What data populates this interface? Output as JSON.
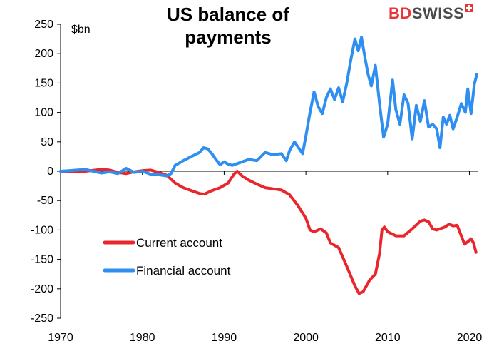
{
  "title": "US balance of\npayments",
  "title_line1": "US balance of",
  "title_line2": "payments",
  "unit_label": "$bn",
  "logo": {
    "part1": "BD",
    "part2": "SWISS"
  },
  "colors": {
    "current_account": "#e8262c",
    "financial_account": "#2f8ff0",
    "axis": "#000000"
  },
  "chart_data": {
    "type": "line",
    "title": "US balance of payments",
    "ylabel": "$bn",
    "xlabel": "",
    "xlim": [
      1970,
      2021
    ],
    "ylim": [
      -250,
      250
    ],
    "x_ticks": [
      1970,
      1980,
      1990,
      2000,
      2010,
      2020
    ],
    "y_ticks": [
      250,
      200,
      150,
      100,
      50,
      0,
      -50,
      -100,
      -150,
      -200,
      -250
    ],
    "grid": false,
    "legend_position": "lower-left",
    "series": [
      {
        "name": "Current account",
        "color": "#e8262c",
        "points": [
          [
            1970,
            0
          ],
          [
            1972,
            -1
          ],
          [
            1973,
            0
          ],
          [
            1975,
            3
          ],
          [
            1976,
            2
          ],
          [
            1977,
            -2
          ],
          [
            1978,
            -4
          ],
          [
            1979,
            -1
          ],
          [
            1980,
            1
          ],
          [
            1981,
            2
          ],
          [
            1982,
            -2
          ],
          [
            1983,
            -7
          ],
          [
            1984,
            -20
          ],
          [
            1985,
            -28
          ],
          [
            1986,
            -33
          ],
          [
            1987,
            -38
          ],
          [
            1987.6,
            -39
          ],
          [
            1988.5,
            -33
          ],
          [
            1989.5,
            -28
          ],
          [
            1990.5,
            -20
          ],
          [
            1991.2,
            -5
          ],
          [
            1991.6,
            0
          ],
          [
            1992.2,
            -8
          ],
          [
            1993,
            -15
          ],
          [
            1994,
            -22
          ],
          [
            1995,
            -28
          ],
          [
            1996,
            -30
          ],
          [
            1997,
            -32
          ],
          [
            1998,
            -40
          ],
          [
            1999,
            -58
          ],
          [
            2000,
            -80
          ],
          [
            2000.5,
            -100
          ],
          [
            2001,
            -103
          ],
          [
            2001.8,
            -98
          ],
          [
            2002.5,
            -105
          ],
          [
            2003,
            -122
          ],
          [
            2004,
            -130
          ],
          [
            2005,
            -162
          ],
          [
            2006,
            -195
          ],
          [
            2006.5,
            -208
          ],
          [
            2007,
            -205
          ],
          [
            2007.8,
            -185
          ],
          [
            2008.5,
            -175
          ],
          [
            2009,
            -140
          ],
          [
            2009.3,
            -100
          ],
          [
            2009.6,
            -95
          ],
          [
            2010,
            -103
          ],
          [
            2011,
            -110
          ],
          [
            2012,
            -110
          ],
          [
            2013,
            -98
          ],
          [
            2014,
            -85
          ],
          [
            2014.5,
            -83
          ],
          [
            2015,
            -86
          ],
          [
            2015.5,
            -98
          ],
          [
            2016,
            -100
          ],
          [
            2017,
            -95
          ],
          [
            2017.5,
            -90
          ],
          [
            2018,
            -93
          ],
          [
            2018.5,
            -92
          ],
          [
            2019,
            -110
          ],
          [
            2019.4,
            -124
          ],
          [
            2019.8,
            -120
          ],
          [
            2020.2,
            -115
          ],
          [
            2020.5,
            -122
          ],
          [
            2020.8,
            -138
          ]
        ]
      },
      {
        "name": "Financial account",
        "color": "#2f8ff0",
        "points": [
          [
            1970,
            0
          ],
          [
            1971,
            1
          ],
          [
            1972,
            2
          ],
          [
            1973,
            3
          ],
          [
            1974,
            0
          ],
          [
            1975,
            -3
          ],
          [
            1976,
            -1
          ],
          [
            1977,
            -4
          ],
          [
            1978,
            5
          ],
          [
            1979,
            -2
          ],
          [
            1980,
            0
          ],
          [
            1981,
            -5
          ],
          [
            1982,
            -6
          ],
          [
            1983,
            -8
          ],
          [
            1983.5,
            -4
          ],
          [
            1984,
            10
          ],
          [
            1985,
            18
          ],
          [
            1986,
            25
          ],
          [
            1987,
            32
          ],
          [
            1987.5,
            40
          ],
          [
            1988,
            38
          ],
          [
            1988.5,
            30
          ],
          [
            1989,
            20
          ],
          [
            1989.5,
            11
          ],
          [
            1990,
            16
          ],
          [
            1990.5,
            12
          ],
          [
            1991,
            10
          ],
          [
            1992,
            15
          ],
          [
            1993,
            20
          ],
          [
            1994,
            18
          ],
          [
            1995,
            32
          ],
          [
            1996,
            28
          ],
          [
            1997,
            30
          ],
          [
            1997.6,
            18
          ],
          [
            1998,
            35
          ],
          [
            1998.6,
            50
          ],
          [
            1999,
            42
          ],
          [
            1999.6,
            30
          ],
          [
            2000,
            60
          ],
          [
            2000.5,
            100
          ],
          [
            2001,
            135
          ],
          [
            2001.5,
            110
          ],
          [
            2002,
            98
          ],
          [
            2002.5,
            125
          ],
          [
            2003,
            140
          ],
          [
            2003.5,
            122
          ],
          [
            2004,
            142
          ],
          [
            2004.5,
            118
          ],
          [
            2005,
            150
          ],
          [
            2005.5,
            190
          ],
          [
            2006,
            225
          ],
          [
            2006.4,
            205
          ],
          [
            2006.8,
            228
          ],
          [
            2007.2,
            195
          ],
          [
            2007.6,
            165
          ],
          [
            2008,
            145
          ],
          [
            2008.5,
            180
          ],
          [
            2009,
            115
          ],
          [
            2009.5,
            58
          ],
          [
            2010,
            80
          ],
          [
            2010.6,
            155
          ],
          [
            2011,
            105
          ],
          [
            2011.5,
            80
          ],
          [
            2012,
            130
          ],
          [
            2012.5,
            115
          ],
          [
            2013,
            55
          ],
          [
            2013.5,
            112
          ],
          [
            2014,
            85
          ],
          [
            2014.5,
            120
          ],
          [
            2015,
            75
          ],
          [
            2015.5,
            80
          ],
          [
            2016,
            72
          ],
          [
            2016.4,
            40
          ],
          [
            2016.8,
            92
          ],
          [
            2017.2,
            80
          ],
          [
            2017.6,
            95
          ],
          [
            2018,
            72
          ],
          [
            2018.5,
            92
          ],
          [
            2019,
            115
          ],
          [
            2019.5,
            100
          ],
          [
            2019.8,
            140
          ],
          [
            2020.2,
            98
          ],
          [
            2020.6,
            148
          ],
          [
            2020.9,
            165
          ]
        ]
      }
    ]
  }
}
